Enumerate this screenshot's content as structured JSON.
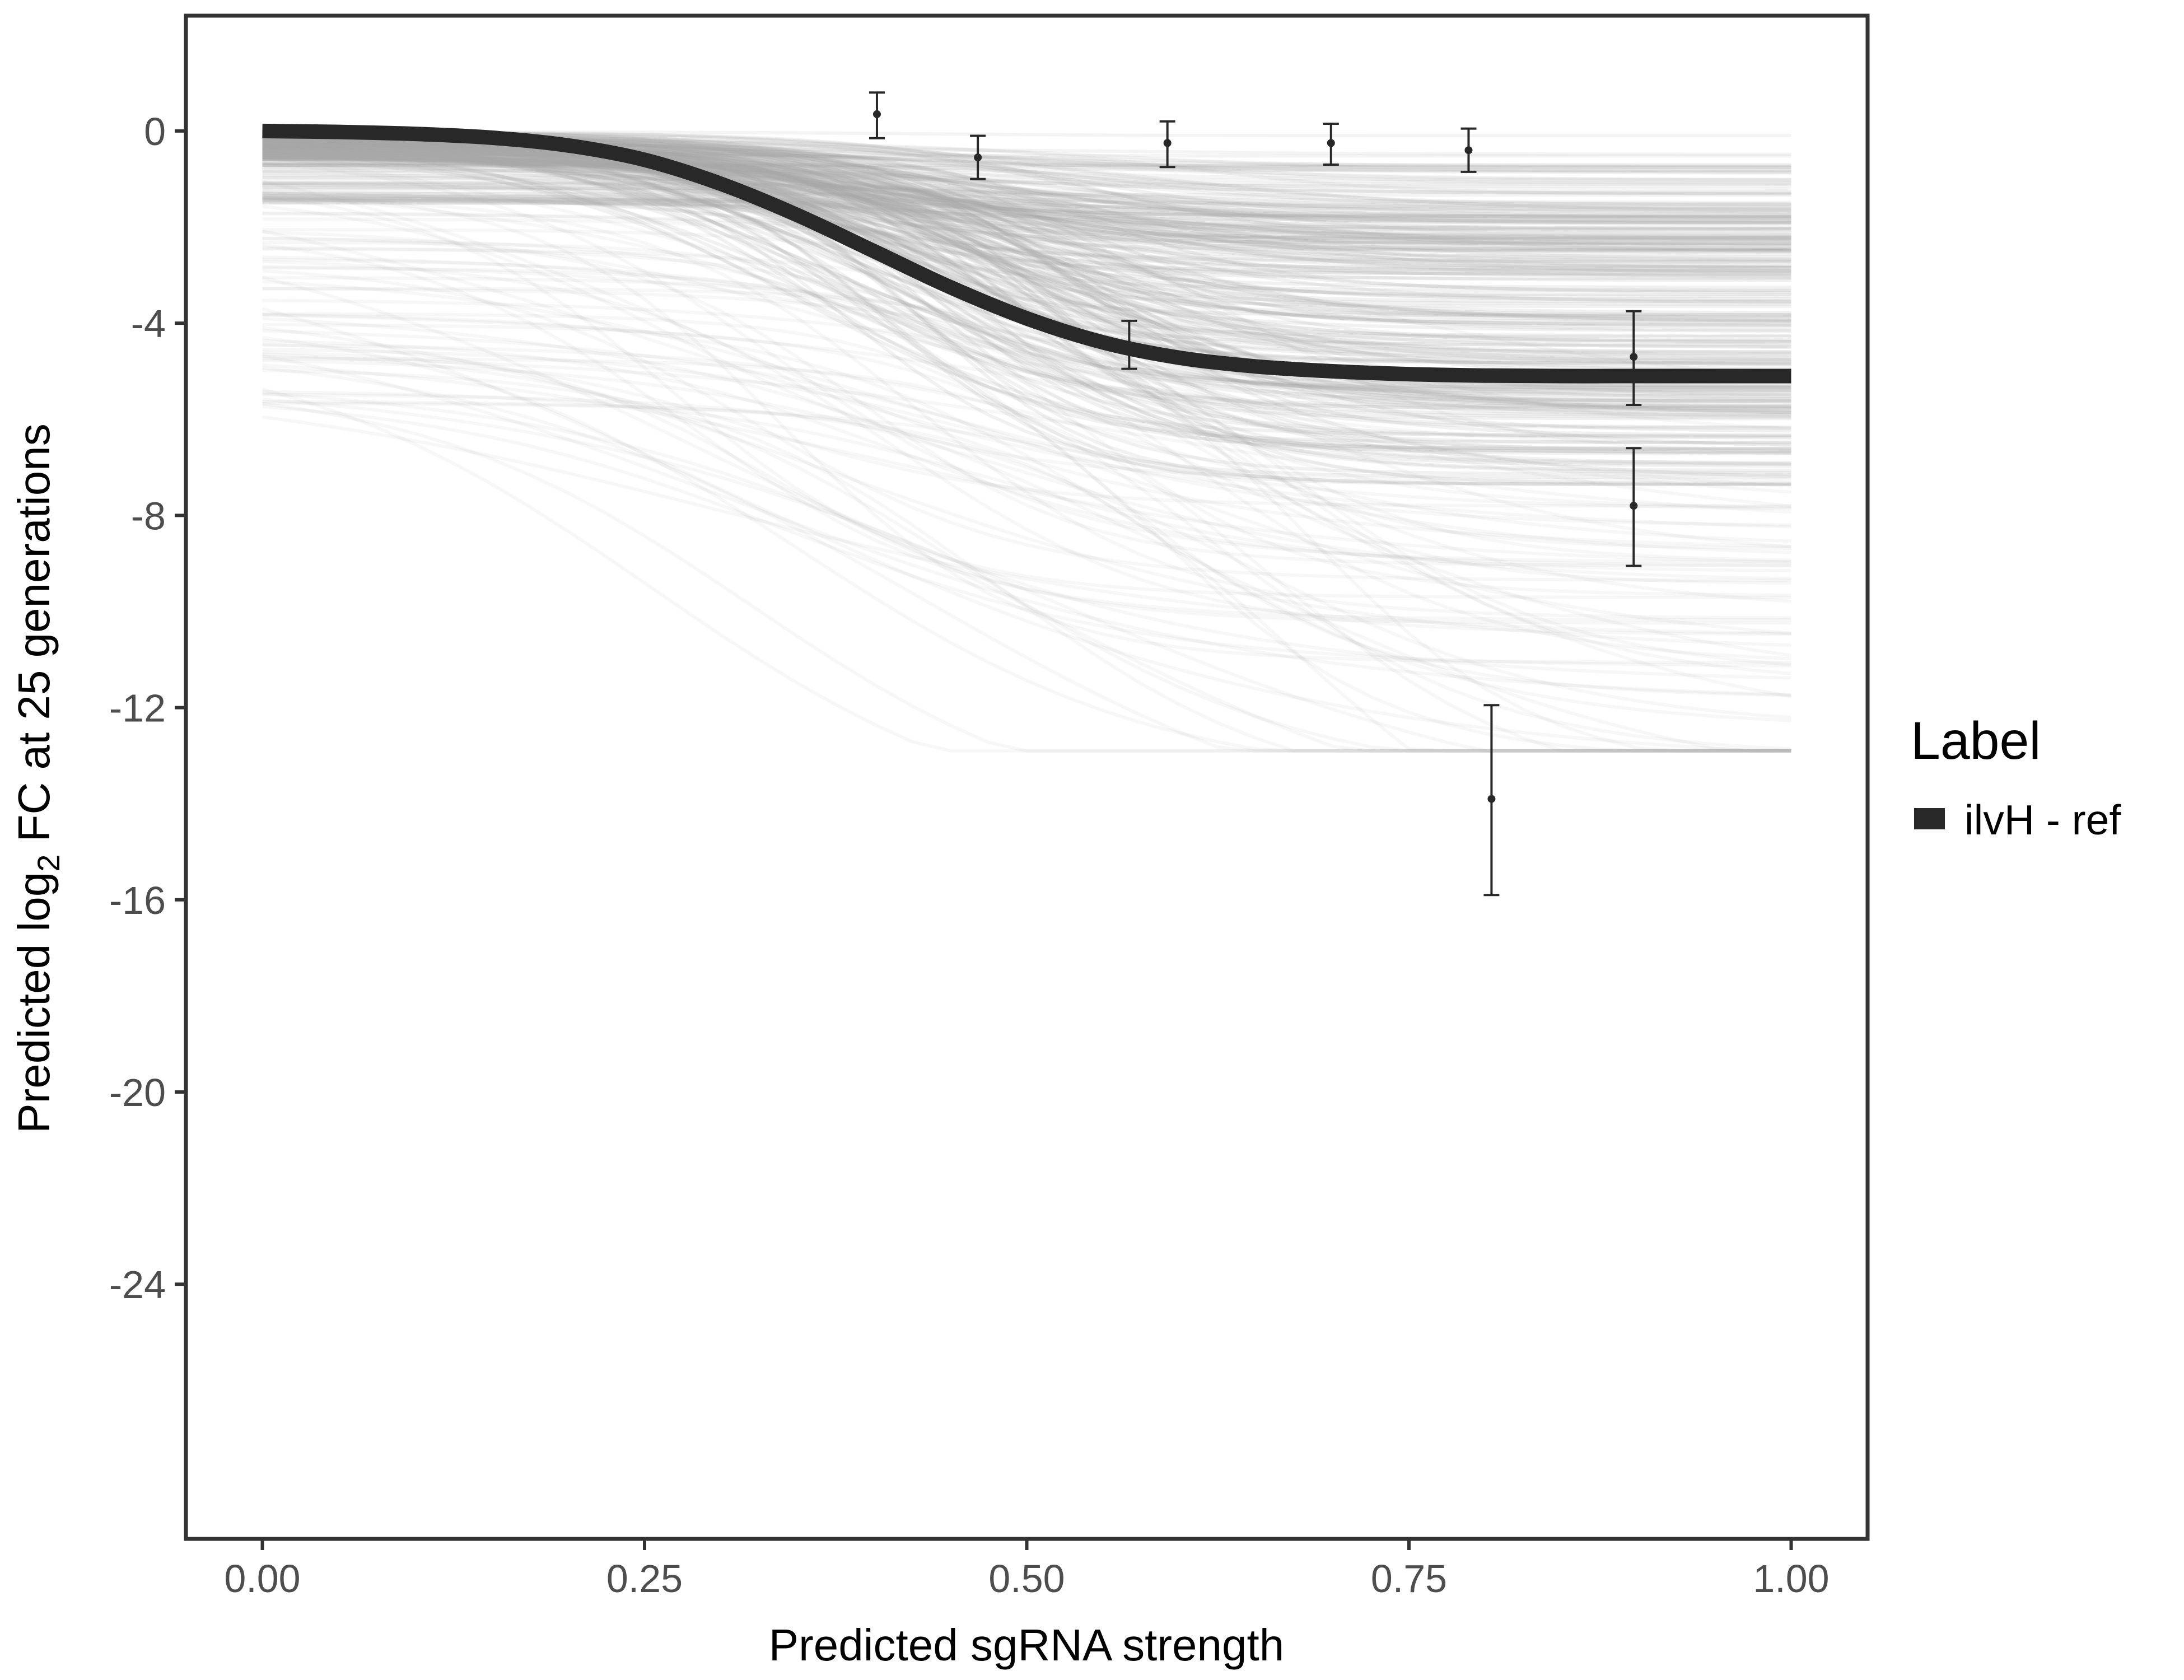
{
  "chart_data": {
    "type": "line",
    "x_axis": {
      "title": "Predicted sgRNA strength",
      "range": [
        -0.05,
        1.05
      ],
      "ticks": [
        0,
        0.25,
        0.5,
        0.75,
        1
      ],
      "tick_labels": [
        "0.00",
        "0.25",
        "0.50",
        "0.75",
        "1.00"
      ]
    },
    "y_axis": {
      "title_prefix": "Predicted  log",
      "title_subscript": "2",
      "title_suffix": " FC at 25 generations",
      "range": [
        -29.3,
        2.4
      ],
      "ticks": [
        0,
        -4,
        -8,
        -12,
        -16,
        -20,
        -24
      ],
      "tick_labels": [
        "0",
        "-4",
        "-8",
        "-12",
        "-16",
        "-20",
        "-24"
      ]
    },
    "grid": false,
    "legend": {
      "title": "Label",
      "placement": "right",
      "entries": [
        {
          "label": "ilvH - ref",
          "color": "#282828"
        }
      ]
    },
    "fitted_curve": {
      "name": "ilvH - ref",
      "color": "#282828",
      "x": [
        0,
        0.05,
        0.1,
        0.15,
        0.2,
        0.25,
        0.3,
        0.35,
        0.4,
        0.45,
        0.5,
        0.55,
        0.6,
        0.65,
        0.7,
        0.75,
        0.8,
        0.85,
        0.9,
        0.95,
        1.0
      ],
      "y": [
        0,
        -0.02,
        -0.06,
        -0.14,
        -0.3,
        -0.6,
        -1.1,
        -1.75,
        -2.5,
        -3.25,
        -3.9,
        -4.4,
        -4.72,
        -4.9,
        -5.0,
        -5.06,
        -5.09,
        -5.1,
        -5.1,
        -5.1,
        -5.1
      ]
    },
    "posterior_draws": {
      "count": 320,
      "color": "#a6a6a6",
      "x_range": [
        0,
        1
      ],
      "y_start_range": [
        0,
        -6.5
      ],
      "y_end_range": [
        0,
        -12.9
      ]
    },
    "observations": [
      {
        "x": 0.402,
        "y": 0.35,
        "lower": -0.15,
        "upper": 0.8
      },
      {
        "x": 0.468,
        "y": -0.55,
        "lower": -1.0,
        "upper": -0.1
      },
      {
        "x": 0.567,
        "y": -4.45,
        "lower": -4.95,
        "upper": -3.95
      },
      {
        "x": 0.592,
        "y": -0.25,
        "lower": -0.75,
        "upper": 0.2
      },
      {
        "x": 0.699,
        "y": -0.25,
        "lower": -0.7,
        "upper": 0.15
      },
      {
        "x": 0.789,
        "y": -0.4,
        "lower": -0.85,
        "upper": 0.05
      },
      {
        "x": 0.804,
        "y": -13.9,
        "lower": -15.9,
        "upper": -11.95
      },
      {
        "x": 0.897,
        "y": -4.7,
        "lower": -5.7,
        "upper": -3.75
      },
      {
        "x": 0.897,
        "y": -7.8,
        "lower": -9.05,
        "upper": -6.6
      }
    ]
  }
}
